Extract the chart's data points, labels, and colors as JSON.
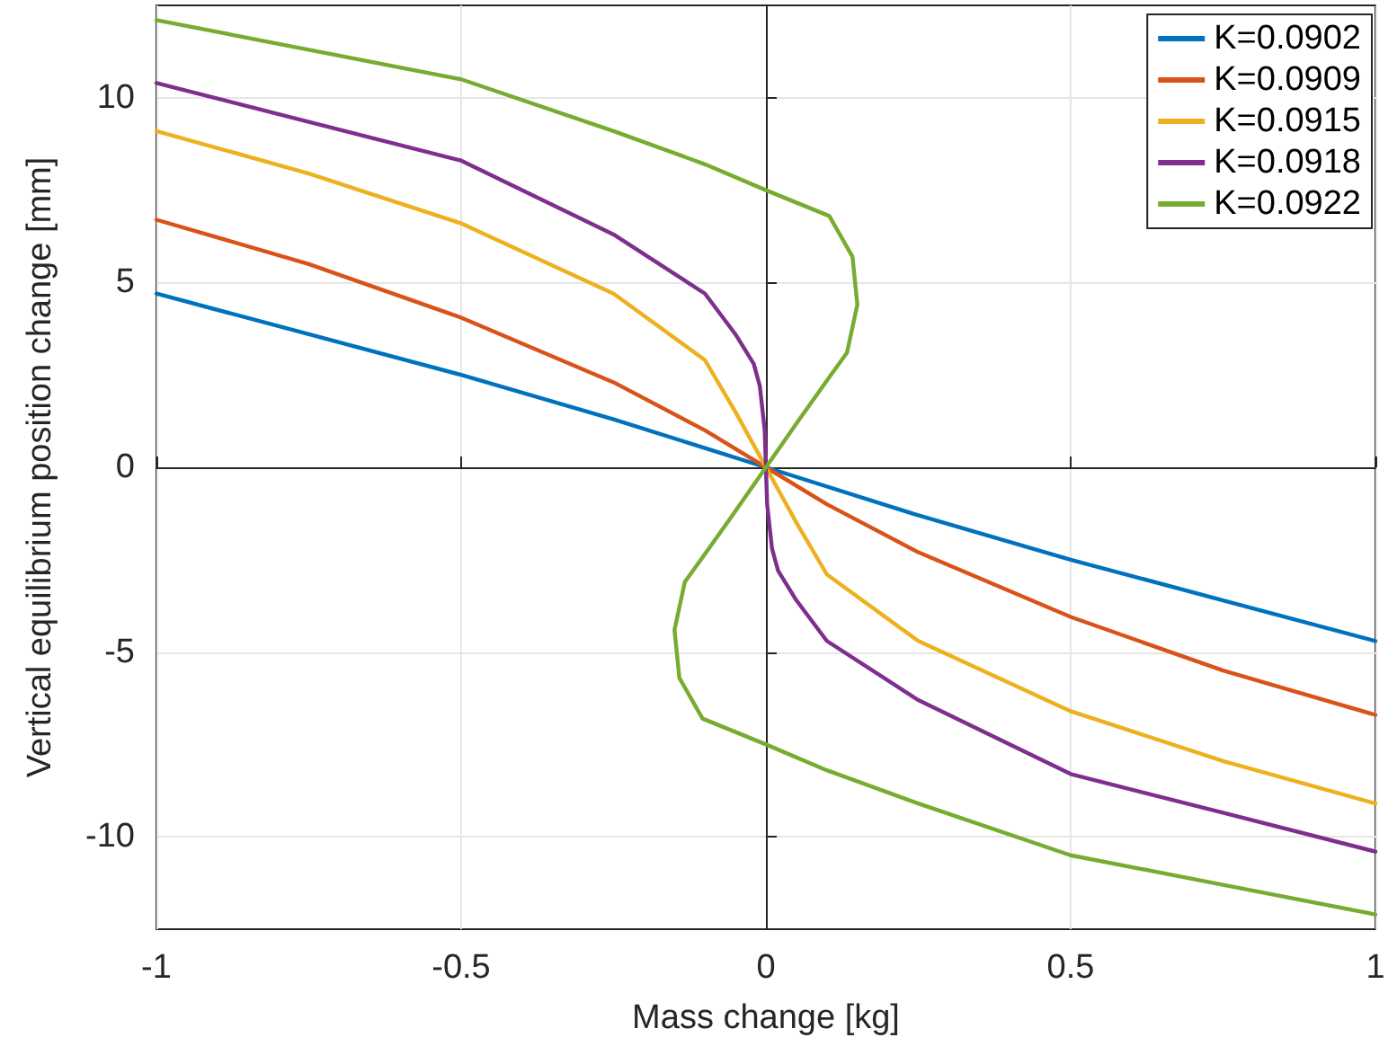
{
  "chart_data": {
    "type": "line",
    "xlabel": "Mass change [kg]",
    "ylabel": "Vertical equilibrium position change [mm]",
    "xlim": [
      -1,
      1
    ],
    "ylim": [
      -12.5,
      12.5
    ],
    "xticks": [
      -1,
      -0.5,
      0,
      0.5,
      1
    ],
    "yticks": [
      -10,
      -5,
      0,
      5,
      10
    ],
    "grid": true,
    "legend": "top right",
    "marker": "none",
    "line_style": "solid",
    "series": [
      {
        "name": "K=0.0902",
        "color": "#0072bd",
        "x": [
          -1,
          -0.75,
          -0.5,
          -0.25,
          0,
          0.25,
          0.5,
          0.75,
          1
        ],
        "values": [
          4.7,
          3.6,
          2.5,
          1.3,
          0,
          -1.3,
          -2.5,
          -3.6,
          -4.7
        ]
      },
      {
        "name": "K=0.0909",
        "color": "#d95319",
        "x": [
          -1,
          -0.75,
          -0.5,
          -0.25,
          -0.1,
          0,
          0.1,
          0.25,
          0.5,
          0.75,
          1
        ],
        "values": [
          6.7,
          5.5,
          4.05,
          2.3,
          1.0,
          0,
          -1.0,
          -2.3,
          -4.05,
          -5.5,
          -6.7
        ]
      },
      {
        "name": "K=0.0915",
        "color": "#edb120",
        "x": [
          -1,
          -0.75,
          -0.5,
          -0.25,
          -0.1,
          -0.05,
          0,
          0.05,
          0.1,
          0.25,
          0.5,
          0.75,
          1
        ],
        "values": [
          9.1,
          7.95,
          6.6,
          4.7,
          2.9,
          1.5,
          0,
          -1.5,
          -2.9,
          -4.7,
          -6.6,
          -7.95,
          -9.1
        ]
      },
      {
        "name": "K=0.0918",
        "color": "#7e2f8e",
        "x": [
          -1,
          -0.75,
          -0.5,
          -0.25,
          -0.1,
          -0.05,
          -0.02,
          -0.01,
          -0.002,
          0,
          0.002,
          0.01,
          0.02,
          0.05,
          0.1,
          0.25,
          0.5,
          0.75,
          1
        ],
        "values": [
          10.4,
          9.35,
          8.3,
          6.3,
          4.7,
          3.6,
          2.8,
          2.2,
          1.0,
          0,
          -1.0,
          -2.2,
          -2.8,
          -3.6,
          -4.7,
          -6.3,
          -8.3,
          -9.35,
          -10.4
        ]
      },
      {
        "name": "K=0.0922",
        "color": "#77ac30",
        "x": [
          -1,
          -0.75,
          -0.5,
          -0.25,
          -0.1,
          0,
          0.104,
          0.142,
          0.15,
          0.133,
          0.104,
          0.055,
          0,
          -0.055,
          -0.104,
          -0.133,
          -0.15,
          -0.142,
          -0.104,
          0,
          0.1,
          0.25,
          0.5,
          0.75,
          1
        ],
        "values": [
          12.1,
          11.3,
          10.5,
          9.1,
          8.2,
          7.5,
          6.8,
          5.7,
          4.4,
          3.1,
          2.44,
          1.3,
          0,
          -1.3,
          -2.44,
          -3.1,
          -4.4,
          -5.7,
          -6.8,
          -7.5,
          -8.2,
          -9.1,
          -10.5,
          -11.3,
          -12.1
        ]
      }
    ]
  }
}
